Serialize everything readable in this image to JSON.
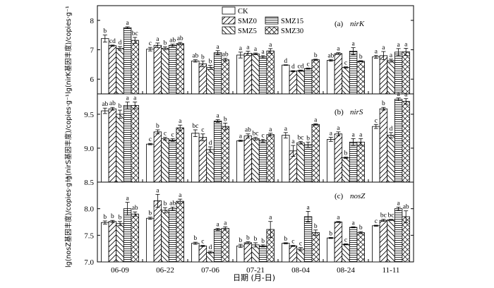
{
  "chart_data": {
    "type": "bar",
    "xlabel": "日期 (月-日)",
    "categories": [
      "06-09",
      "06-22",
      "07-06",
      "07-21",
      "08-04",
      "08-24",
      "11-11"
    ],
    "legend": {
      "placement": "top-center",
      "entries": [
        "CK",
        "SMZ0",
        "SMZ5",
        "SMZ15",
        "SMZ30"
      ]
    },
    "patterns": {
      "CK": "solid-white",
      "SMZ0": "diagonal-up",
      "SMZ5": "diagonal-down",
      "SMZ15": "horizontal",
      "SMZ30": "crosshatch"
    },
    "panels": [
      {
        "gene": "nirK",
        "tag": "(a)",
        "ylabel": "lg(nirK基因丰度)/copies·g⁻¹",
        "ylim": [
          5.5,
          8.5
        ],
        "yticks": [
          "6",
          "7",
          "8"
        ],
        "yticks_values": [
          6,
          7,
          8
        ],
        "series": [
          {
            "name": "CK",
            "values": [
              7.38,
              7.02,
              6.62,
              6.82,
              6.48,
              6.64,
              6.76
            ],
            "errors": [
              0.12,
              0.06,
              0.04,
              0.1,
              0.01,
              0.03,
              0.05
            ],
            "letters": [
              "b",
              "c",
              "ab",
              "a",
              "d",
              "ab",
              "a"
            ]
          },
          {
            "name": "SMZ0",
            "values": [
              7.14,
              7.15,
              6.52,
              6.88,
              6.27,
              6.87,
              6.8
            ],
            "errors": [
              0.02,
              0.08,
              0.1,
              0.07,
              0.02,
              0.03,
              0.14
            ],
            "letters": [
              "cd",
              "a",
              "b",
              "a",
              "d",
              "a",
              "a"
            ]
          },
          {
            "name": "SMZ5",
            "values": [
              7.05,
              7.05,
              6.4,
              6.86,
              6.29,
              6.4,
              6.63
            ],
            "errors": [
              0.06,
              0.05,
              0.07,
              0.03,
              0.02,
              0.02,
              0.05
            ],
            "letters": [
              "d",
              "b",
              "b",
              "a",
              "cd",
              "c",
              "a"
            ]
          },
          {
            "name": "SMZ15",
            "values": [
              7.75,
              7.15,
              6.9,
              6.76,
              6.36,
              6.95,
              6.92
            ],
            "errors": [
              0.03,
              0.04,
              0.07,
              0.04,
              0.02,
              0.12,
              0.12
            ],
            "letters": [
              "a",
              "ab",
              "a",
              "a",
              "c",
              "a",
              "a"
            ]
          },
          {
            "name": "SMZ30",
            "values": [
              7.32,
              7.21,
              6.66,
              6.96,
              6.66,
              6.61,
              6.93
            ],
            "errors": [
              0.1,
              0.04,
              0.05,
              0.08,
              0.02,
              0.02,
              0.12
            ],
            "letters": [
              "bc",
              "ab",
              "ab",
              "a",
              "b",
              "b",
              "a"
            ]
          }
        ]
      },
      {
        "gene": "nirS",
        "tag": "(b)",
        "ylabel": "lg(nirS基因丰度)/copies·g⁻¹",
        "ylim": [
          8.5,
          9.8
        ],
        "yticks": [
          "8.5",
          "9.0",
          "9.5"
        ],
        "yticks_values": [
          8.5,
          9.0,
          9.5
        ],
        "series": [
          {
            "name": "CK",
            "values": [
              9.55,
              9.06,
              9.22,
              9.11,
              9.19,
              9.13,
              9.32
            ],
            "errors": [
              0.04,
              0.01,
              0.05,
              0.01,
              0.04,
              0.03,
              0.03
            ],
            "letters": [
              "ab",
              "c",
              "bc",
              "a",
              "a",
              "a",
              "c"
            ]
          },
          {
            "name": "SMZ0",
            "values": [
              9.58,
              9.24,
              9.16,
              9.18,
              8.96,
              9.21,
              9.58
            ],
            "errors": [
              0.02,
              0.03,
              0.05,
              0.03,
              0.08,
              0.03,
              0.02
            ],
            "letters": [
              "ab",
              "b",
              "c",
              "ab",
              "a",
              "a",
              "b"
            ]
          },
          {
            "name": "SMZ5",
            "values": [
              9.5,
              9.14,
              8.98,
              9.14,
              9.08,
              8.86,
              9.19
            ],
            "errors": [
              0.06,
              0.02,
              0.04,
              0.02,
              0.02,
              0.01,
              0.04
            ],
            "letters": [
              "b",
              "c",
              "d",
              "bc",
              "bc",
              "b",
              "d"
            ]
          },
          {
            "name": "SMZ15",
            "values": [
              9.63,
              9.12,
              9.4,
              9.11,
              9.05,
              9.09,
              9.72
            ],
            "errors": [
              0.05,
              0.02,
              0.02,
              0.02,
              0.04,
              0.05,
              0.02
            ],
            "letters": [
              "a",
              "c",
              "a",
              "c",
              "b",
              "a",
              "a"
            ]
          },
          {
            "name": "SMZ30",
            "values": [
              9.63,
              9.3,
              9.32,
              9.2,
              9.35,
              9.09,
              9.69
            ],
            "errors": [
              0.05,
              0.04,
              0.05,
              0.02,
              0.01,
              0.05,
              0.04
            ],
            "letters": [
              "a",
              "a",
              "b",
              "a",
              "a",
              "a",
              "a"
            ]
          }
        ]
      },
      {
        "gene": "nosZ",
        "tag": "(c)",
        "ylabel": "lg(nosZ基因丰度)/copies·g⁻¹",
        "ylim": [
          7.0,
          8.5
        ],
        "yticks": [
          "7.0",
          "7.5",
          "8.0"
        ],
        "yticks_values": [
          7.0,
          7.5,
          8.0
        ],
        "series": [
          {
            "name": "CK",
            "values": [
              7.74,
              7.82,
              7.35,
              7.3,
              7.35,
              7.45,
              7.68
            ],
            "errors": [
              0.03,
              0.02,
              0.02,
              0.03,
              0.01,
              0.01,
              0.01
            ],
            "letters": [
              "b",
              "b",
              "b",
              "b",
              "b",
              "b",
              "c"
            ]
          },
          {
            "name": "SMZ0",
            "values": [
              7.76,
              8.15,
              7.3,
              7.36,
              7.3,
              7.75,
              7.78
            ],
            "errors": [
              0.02,
              0.12,
              0.01,
              0.02,
              0.01,
              0.01,
              0.02
            ],
            "letters": [
              "b",
              "a",
              "c",
              "b",
              "c",
              "a",
              "bc"
            ]
          },
          {
            "name": "SMZ5",
            "values": [
              7.72,
              7.97,
              7.18,
              7.32,
              7.24,
              7.33,
              7.79
            ],
            "errors": [
              0.04,
              0.05,
              0.02,
              0.04,
              0.03,
              0.01,
              0.01
            ],
            "letters": [
              "b",
              "b",
              "d",
              "b",
              "c",
              "c",
              "bc"
            ]
          },
          {
            "name": "SMZ15",
            "values": [
              8.0,
              8.0,
              7.61,
              7.3,
              7.85,
              7.65,
              8.0
            ],
            "errors": [
              0.12,
              0.03,
              0.02,
              0.02,
              0.1,
              0.01,
              0.03
            ],
            "letters": [
              "a",
              "ab",
              "a",
              "b",
              "a",
              "a",
              "a"
            ]
          },
          {
            "name": "SMZ30",
            "values": [
              7.9,
              8.14,
              7.63,
              7.61,
              7.55,
              7.55,
              7.85
            ],
            "errors": [
              0.04,
              0.04,
              0.03,
              0.15,
              0.05,
              0.02,
              0.11
            ],
            "letters": [
              "ab",
              "a",
              "a",
              "a",
              "b",
              "b",
              "ab"
            ]
          }
        ]
      }
    ]
  }
}
